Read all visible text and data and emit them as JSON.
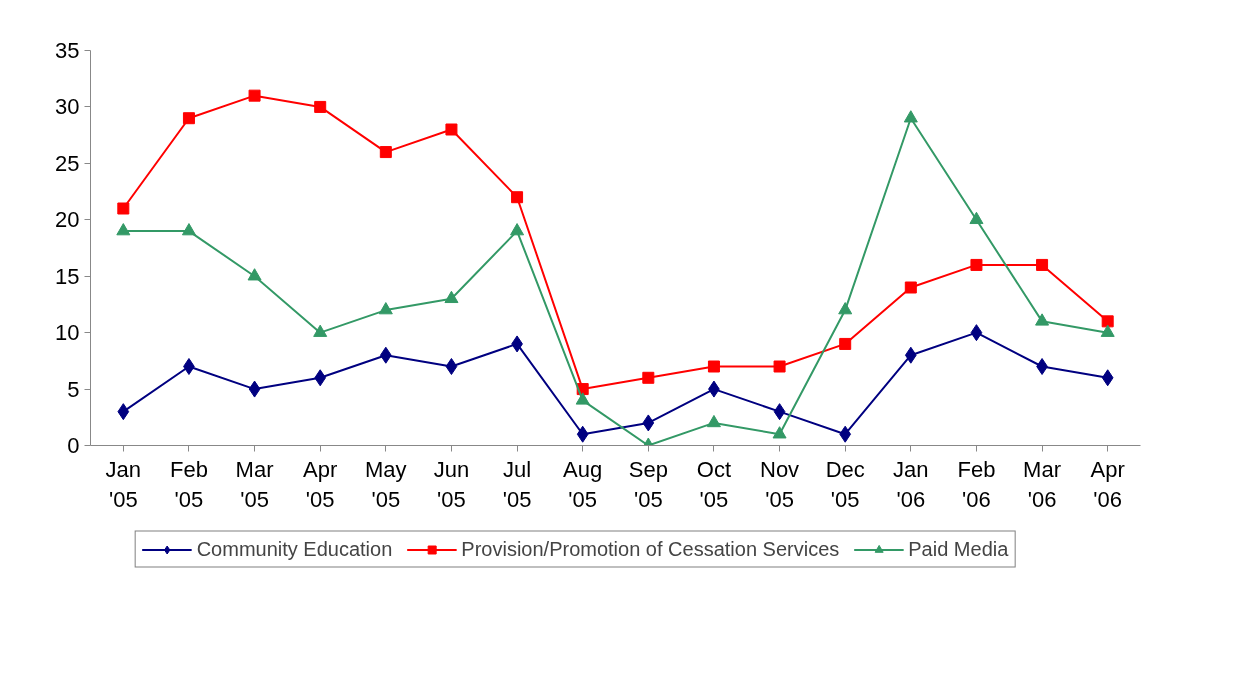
{
  "chart_data": {
    "type": "line",
    "categories": [
      "Jan\n'05",
      "Feb\n'05",
      "Mar\n'05",
      "Apr\n'05",
      "May\n'05",
      "Jun\n'05",
      "Jul\n'05",
      "Aug\n'05",
      "Sep\n'05",
      "Oct\n'05",
      "Nov\n'05",
      "Dec\n'05",
      "Jan\n'06",
      "Feb\n'06",
      "Mar\n'06",
      "Apr\n'06"
    ],
    "series": [
      {
        "name": "Community Education",
        "color": "#000080",
        "marker": "diamond",
        "values": [
          3,
          7,
          5,
          6,
          8,
          7,
          9,
          1,
          2,
          5,
          3,
          1,
          8,
          10,
          7,
          6
        ]
      },
      {
        "name": "Provision/Promotion of Cessation Services",
        "color": "#ff0000",
        "marker": "square",
        "values": [
          21,
          29,
          31,
          30,
          26,
          28,
          22,
          5,
          6,
          7,
          7,
          9,
          14,
          16,
          16,
          11
        ]
      },
      {
        "name": "Paid Media",
        "color": "#339966",
        "marker": "triangle",
        "values": [
          19,
          19,
          15,
          10,
          12,
          13,
          19,
          4,
          0,
          2,
          1,
          12,
          29,
          20,
          11,
          10
        ]
      }
    ],
    "ylim": [
      0,
      35
    ],
    "yticks": [
      0,
      5,
      10,
      15,
      20,
      25,
      30,
      35
    ],
    "grid": false,
    "legend": "bottom",
    "line_style": "solid"
  }
}
